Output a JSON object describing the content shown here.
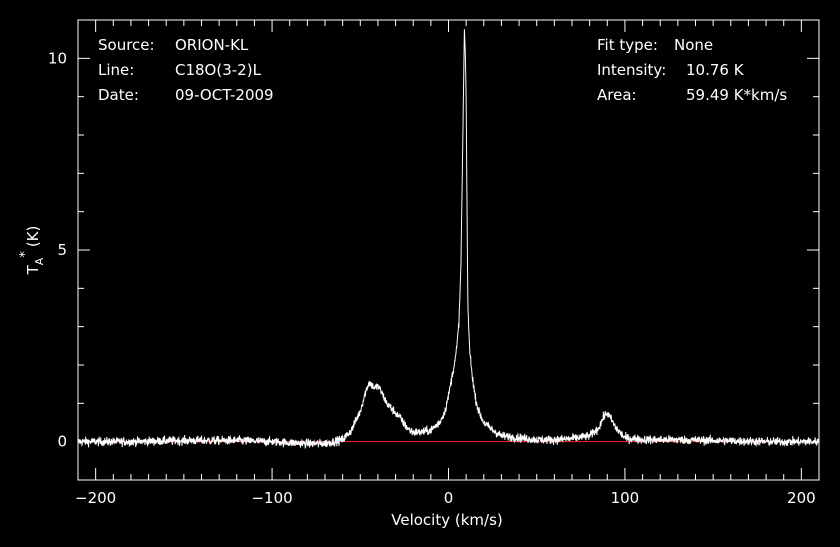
{
  "chart_data": {
    "type": "line",
    "xlabel": "Velocity (km/s)",
    "ylabel": "T",
    "ylabel_sub": "A",
    "ylabel_sup": "*",
    "ylabel_unit": "(K)",
    "xlim": [
      -210,
      210
    ],
    "ylim": [
      -1.0,
      11.0
    ],
    "x_ticks": [
      -200,
      -100,
      0,
      100,
      200
    ],
    "x_tick_labels": [
      "−200",
      "−100",
      "0",
      "100",
      "200"
    ],
    "y_ticks": [
      0,
      5,
      10
    ],
    "y_tick_labels": [
      "0",
      "5",
      "10"
    ],
    "grid": false,
    "baseline": 0,
    "baseline_color": "#ff2020",
    "line_color": "#ffffff",
    "series": [
      {
        "x": [
          -210,
          -180,
          -150,
          -120,
          -100,
          -80,
          -70,
          -60,
          -55,
          -50,
          -47,
          -45,
          -42,
          -40,
          -38,
          -35,
          -32,
          -30,
          -27,
          -25,
          -22,
          -20,
          -15,
          -10,
          -5,
          -2,
          0,
          2,
          4,
          5,
          6,
          7,
          8,
          9,
          9.5,
          10,
          10.5,
          11,
          12,
          13,
          14,
          15,
          17,
          20,
          25,
          30,
          40,
          50,
          60,
          70,
          80,
          85,
          88,
          90,
          92,
          95,
          100,
          110,
          130,
          150,
          180,
          210
        ],
        "y": [
          0.0,
          0.0,
          0.03,
          0.03,
          0.0,
          -0.05,
          -0.05,
          0.05,
          0.3,
          0.8,
          1.3,
          1.55,
          1.4,
          1.45,
          1.3,
          1.0,
          0.85,
          0.75,
          0.6,
          0.45,
          0.3,
          0.25,
          0.25,
          0.3,
          0.5,
          0.8,
          1.2,
          1.7,
          2.2,
          2.6,
          3.2,
          4.5,
          7.5,
          10.76,
          10.2,
          9.0,
          6.0,
          3.5,
          2.4,
          1.9,
          1.55,
          1.2,
          0.8,
          0.5,
          0.3,
          0.15,
          0.1,
          0.05,
          0.05,
          0.08,
          0.15,
          0.35,
          0.65,
          0.75,
          0.6,
          0.35,
          0.1,
          0.05,
          0.05,
          0.03,
          0.0,
          0.0
        ]
      }
    ],
    "noise_rms": 0.08
  },
  "header": {
    "source_label": "Source:",
    "source_value": "ORION-KL",
    "line_label": "Line:",
    "line_value": "C18O(3-2)L",
    "date_label": "Date:",
    "date_value": "09-OCT-2009",
    "fit_label": "Fit type:",
    "fit_value": "None",
    "intensity_label": "Intensity:",
    "intensity_value": "10.76 K",
    "area_label": "Area:",
    "area_value": "59.49 K*km/s"
  }
}
